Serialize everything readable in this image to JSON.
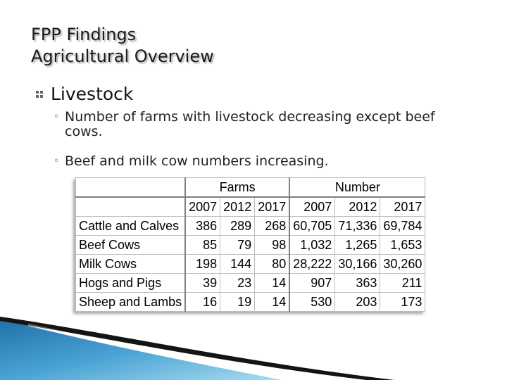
{
  "title": {
    "line1": "FPP Findings",
    "line2": "Agricultural Overview"
  },
  "bullet": {
    "icon": "square-bullet-icon",
    "label": "Livestock"
  },
  "subpoints": [
    {
      "mark": "◦",
      "text": "Number of farms with livestock decreasing except beef cows."
    },
    {
      "mark": "◦",
      "text": "Beef and milk cow numbers increasing."
    }
  ],
  "table": {
    "groups": [
      "Farms",
      "Number"
    ],
    "years": [
      "2007",
      "2012",
      "2017",
      "2007",
      "2012",
      "2017"
    ],
    "rows": [
      {
        "label": "Cattle and Calves",
        "values": [
          "386",
          "289",
          "268",
          "60,705",
          "71,336",
          "69,784"
        ]
      },
      {
        "label": "Beef Cows",
        "values": [
          "85",
          "79",
          "98",
          "1,032",
          "1,265",
          "1,653"
        ]
      },
      {
        "label": "Milk Cows",
        "values": [
          "198",
          "144",
          "80",
          "28,222",
          "30,166",
          "30,260"
        ]
      },
      {
        "label": "Hogs and Pigs",
        "values": [
          "39",
          "23",
          "14",
          "907",
          "363",
          "211"
        ]
      },
      {
        "label": "Sheep and Lambs",
        "values": [
          "16",
          "19",
          "14",
          "530",
          "203",
          "173"
        ]
      }
    ]
  },
  "colors": {
    "accent_blue": "#2a7fb8",
    "accent_light": "#8ecae6",
    "dark_stripe": "#111111"
  }
}
